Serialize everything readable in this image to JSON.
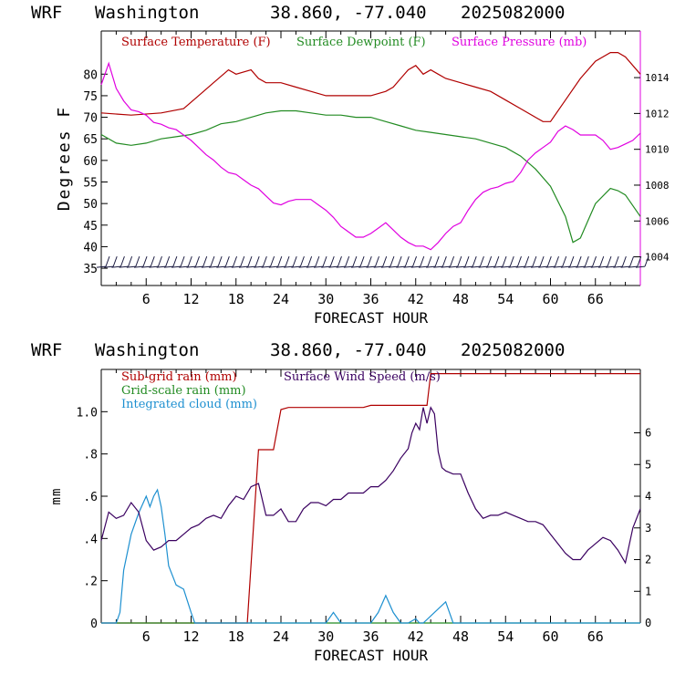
{
  "header": {
    "model": "WRF",
    "location": "Washington",
    "coords": "38.860, -77.040",
    "run": "2025082000"
  },
  "colors": {
    "temperature": "#b00000",
    "dewpoint": "#228b22",
    "pressure": "#e000e0",
    "subgrid_rain": "#b00000",
    "gridscale_rain": "#228b22",
    "cloud": "#1e90d0",
    "wind": "#3a0060",
    "axis": "#000000",
    "right_axis_top": "#e000e0"
  },
  "chart_data": [
    {
      "type": "line",
      "title": "",
      "xlabel": "FORECAST HOUR",
      "ylabel": "Degrees F",
      "xlim": [
        0,
        72
      ],
      "ylim": [
        31,
        90
      ],
      "y2lim": [
        1002.4,
        1016.6
      ],
      "xticks": [
        "6",
        "12",
        "18",
        "24",
        "30",
        "36",
        "42",
        "48",
        "54",
        "60",
        "66"
      ],
      "yticks": [
        "35",
        "40",
        "45",
        "50",
        "55",
        "60",
        "65",
        "70",
        "75",
        "80"
      ],
      "y2ticks": [
        "1004",
        "1006",
        "1008",
        "1010",
        "1012",
        "1014"
      ],
      "legend": [
        "Surface Temperature (F)",
        "Surface Dewpoint (F)",
        "Surface Pressure (mb)"
      ],
      "legend_position": "top",
      "wind_barbs": "along bottom of panel",
      "series": [
        {
          "name": "Surface Temperature (F)",
          "axis": "left",
          "x": [
            0,
            4,
            8,
            11,
            13,
            15,
            17,
            18,
            20,
            21,
            22,
            24,
            26,
            28,
            30,
            32,
            34,
            36,
            38,
            39,
            40,
            41,
            42,
            43,
            44,
            45,
            46,
            48,
            50,
            52,
            54,
            56,
            58,
            59,
            60,
            62,
            64,
            66,
            68,
            69,
            70,
            72
          ],
          "y": [
            71,
            70.5,
            71,
            72,
            75,
            78,
            81,
            80,
            81,
            79,
            78,
            78,
            77,
            76,
            75,
            75,
            75,
            75,
            76,
            77,
            79,
            81,
            82,
            80,
            81,
            80,
            79,
            78,
            77,
            76,
            74,
            72,
            70,
            69,
            69,
            74,
            79,
            83,
            85,
            85,
            84,
            80
          ]
        },
        {
          "name": "Surface Dewpoint (F)",
          "axis": "left",
          "x": [
            0,
            2,
            4,
            6,
            8,
            10,
            12,
            14,
            16,
            18,
            20,
            22,
            24,
            26,
            28,
            30,
            32,
            34,
            36,
            38,
            40,
            42,
            44,
            46,
            48,
            50,
            52,
            54,
            56,
            58,
            60,
            62,
            63,
            64,
            65,
            66,
            68,
            69,
            70,
            72
          ],
          "y": [
            66,
            64,
            63.5,
            64,
            65,
            65.5,
            66,
            67,
            68.5,
            69,
            70,
            71,
            71.5,
            71.5,
            71,
            70.5,
            70.5,
            70,
            70,
            69,
            68,
            67,
            66.5,
            66,
            65.5,
            65,
            64,
            63,
            61,
            58,
            54,
            47,
            41,
            42,
            46,
            50,
            53.5,
            53,
            52,
            47
          ]
        },
        {
          "name": "Surface Pressure (mb)",
          "axis": "right",
          "x": [
            0,
            1,
            2,
            3,
            4,
            5,
            6,
            7,
            8,
            9,
            10,
            11,
            12,
            13,
            14,
            15,
            16,
            17,
            18,
            19,
            20,
            21,
            22,
            23,
            24,
            25,
            26,
            27,
            28,
            29,
            30,
            31,
            32,
            33,
            34,
            35,
            36,
            37,
            38,
            39,
            40,
            41,
            42,
            43,
            44,
            45,
            46,
            47,
            48,
            49,
            50,
            51,
            52,
            53,
            54,
            55,
            56,
            57,
            58,
            59,
            60,
            61,
            62,
            63,
            64,
            65,
            66,
            67,
            68,
            69,
            70,
            71,
            72
          ],
          "y": [
            1013.6,
            1014.8,
            1013.4,
            1012.7,
            1012.2,
            1012.1,
            1011.9,
            1011.5,
            1011.4,
            1011.2,
            1011.1,
            1010.8,
            1010.5,
            1010.1,
            1009.7,
            1009.4,
            1009.0,
            1008.7,
            1008.6,
            1008.3,
            1008.0,
            1007.8,
            1007.4,
            1007.0,
            1006.9,
            1007.1,
            1007.2,
            1007.2,
            1007.2,
            1006.9,
            1006.6,
            1006.2,
            1005.7,
            1005.4,
            1005.1,
            1005.1,
            1005.3,
            1005.6,
            1005.9,
            1005.5,
            1005.1,
            1004.8,
            1004.6,
            1004.6,
            1004.4,
            1004.8,
            1005.3,
            1005.7,
            1005.9,
            1006.6,
            1007.2,
            1007.6,
            1007.8,
            1007.9,
            1008.1,
            1008.2,
            1008.7,
            1009.4,
            1009.8,
            1010.1,
            1010.4,
            1011.0,
            1011.3,
            1011.1,
            1010.8,
            1010.8,
            1010.8,
            1010.5,
            1010.0,
            1010.1,
            1010.3,
            1010.5,
            1010.9
          ]
        }
      ]
    },
    {
      "type": "line",
      "title": "",
      "xlabel": "FORECAST HOUR",
      "ylabel": "mm",
      "xlim": [
        0,
        72
      ],
      "ylim": [
        0,
        1.2
      ],
      "y2lim": [
        0,
        8
      ],
      "xticks": [
        "6",
        "12",
        "18",
        "24",
        "30",
        "36",
        "42",
        "48",
        "54",
        "60",
        "66"
      ],
      "yticks": [
        "0",
        ".2",
        ".4",
        ".6",
        ".8",
        "1.0"
      ],
      "y2ticks": [
        "0",
        "1",
        "2",
        "3",
        "4",
        "5",
        "6"
      ],
      "legend": [
        "Sub-grid rain (mm)",
        "Surface Wind Speed (m/s)",
        "Grid-scale rain (mm)",
        "Integrated cloud (mm)"
      ],
      "legend_position": "top-left",
      "series": [
        {
          "name": "Sub-grid rain (mm)",
          "axis": "left",
          "x": [
            0,
            19.5,
            20.5,
            21,
            23,
            24,
            25,
            35,
            36,
            43,
            43.5,
            44,
            72
          ],
          "y": [
            0,
            0,
            0.55,
            0.82,
            0.82,
            1.01,
            1.02,
            1.02,
            1.03,
            1.03,
            1.03,
            1.18,
            1.18
          ]
        },
        {
          "name": "Grid-scale rain (mm)",
          "axis": "left",
          "x": [
            0,
            72
          ],
          "y": [
            0,
            0
          ]
        },
        {
          "name": "Integrated cloud (mm)",
          "axis": "left",
          "x": [
            0,
            2,
            2.5,
            3,
            4,
            5,
            6,
            6.5,
            7,
            7.5,
            8,
            8.5,
            9,
            10,
            11,
            12,
            12.5,
            13,
            30,
            31,
            32,
            36,
            37,
            38,
            39,
            40,
            41,
            42,
            42.5,
            43,
            46,
            47,
            48,
            72
          ],
          "y": [
            0,
            0,
            0.05,
            0.25,
            0.42,
            0.52,
            0.6,
            0.55,
            0.6,
            0.63,
            0.55,
            0.42,
            0.27,
            0.18,
            0.16,
            0.05,
            0,
            0,
            0,
            0.05,
            0,
            0,
            0.05,
            0.13,
            0.05,
            0,
            0,
            0.02,
            0,
            0,
            0.1,
            0,
            0,
            0
          ]
        },
        {
          "name": "Surface Wind Speed (m/s)",
          "axis": "right",
          "x": [
            0,
            1,
            2,
            3,
            4,
            5,
            6,
            7,
            8,
            9,
            10,
            11,
            12,
            13,
            14,
            15,
            16,
            17,
            18,
            19,
            20,
            21,
            22,
            23,
            24,
            25,
            26,
            27,
            28,
            29,
            30,
            31,
            32,
            33,
            34,
            35,
            36,
            37,
            38,
            39,
            40,
            41,
            41.5,
            42,
            42.5,
            43,
            43.5,
            44,
            44.5,
            45,
            45.5,
            46,
            47,
            48,
            49,
            50,
            51,
            52,
            53,
            54,
            55,
            56,
            57,
            58,
            59,
            60,
            61,
            62,
            63,
            64,
            65,
            66,
            67,
            68,
            69,
            70,
            71,
            72
          ],
          "y": [
            2.6,
            3.5,
            3.3,
            3.4,
            3.8,
            3.5,
            2.6,
            2.3,
            2.4,
            2.6,
            2.6,
            2.8,
            3.0,
            3.1,
            3.3,
            3.4,
            3.3,
            3.7,
            4.0,
            3.9,
            4.3,
            4.4,
            3.4,
            3.4,
            3.6,
            3.2,
            3.2,
            3.6,
            3.8,
            3.8,
            3.7,
            3.9,
            3.9,
            4.1,
            4.1,
            4.1,
            4.3,
            4.3,
            4.5,
            4.8,
            5.2,
            5.5,
            6.0,
            6.3,
            6.1,
            6.8,
            6.3,
            6.8,
            6.6,
            5.4,
            4.9,
            4.8,
            4.7,
            4.7,
            4.1,
            3.6,
            3.3,
            3.4,
            3.4,
            3.5,
            3.4,
            3.3,
            3.2,
            3.2,
            3.1,
            2.8,
            2.5,
            2.2,
            2.0,
            2.0,
            2.3,
            2.5,
            2.7,
            2.6,
            2.3,
            1.9,
            3.0,
            3.6
          ]
        }
      ]
    }
  ]
}
